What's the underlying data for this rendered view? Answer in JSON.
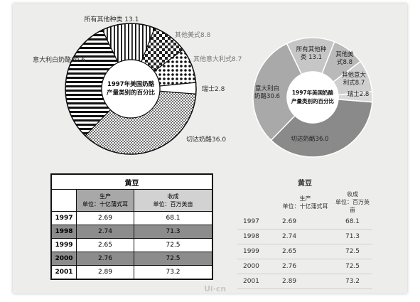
{
  "chart_data": [
    {
      "type": "pie",
      "style": "hatched",
      "title": "1997年美国奶酪 产量类别的百分比",
      "title_lines": [
        "1997年美国奶酪",
        "产量类别的百分比"
      ],
      "slices": [
        {
          "label": "切达奶酪",
          "value": 36.0,
          "text": "切达奶酪36.0",
          "fill": "dots"
        },
        {
          "label": "意大利白奶酪",
          "value": 30.6,
          "text": "意大利白奶酪30.6",
          "fill": "hstripes"
        },
        {
          "label": "所有其他种类",
          "value": 13.1,
          "text": "所有其他种类 13.1",
          "fill": "vstripes"
        },
        {
          "label": "其他美式",
          "value": 8.8,
          "text": "其他美式8.8",
          "fill": "checker"
        },
        {
          "label": "其他意大利式",
          "value": 8.7,
          "text": "其他意大利式8.7",
          "fill": "bigdots"
        },
        {
          "label": "瑞士",
          "value": 2.8,
          "text": "瑞士2.8",
          "fill": "white"
        }
      ]
    },
    {
      "type": "pie",
      "style": "gray",
      "title": "1997年美国奶酪 产量类别的百分比",
      "title_lines": [
        "1997年美国奶酪",
        "产量类别的百分比"
      ],
      "slices": [
        {
          "label": "切达奶酪",
          "value": 36.0,
          "lines": [
            "切达奶酪36.0"
          ],
          "color": "#8a8a8a"
        },
        {
          "label": "意大利白奶酪",
          "value": 30.6,
          "lines": [
            "意大利白",
            "奶酪30.6"
          ],
          "color": "#a9a9a9"
        },
        {
          "label": "所有其他种类",
          "value": 13.1,
          "lines": [
            "所有其他种",
            "类 13.1"
          ],
          "color": "#c6c6c6"
        },
        {
          "label": "其他美式",
          "value": 8.8,
          "lines": [
            "其他美",
            "式8.8"
          ],
          "color": "#b9b9b9"
        },
        {
          "label": "其他意大利式",
          "value": 8.7,
          "lines": [
            "其他意大",
            "利式8.7"
          ],
          "color": "#cfcfcf"
        },
        {
          "label": "瑞士",
          "value": 2.8,
          "lines": [
            "瑞士2.8"
          ],
          "color": "#d9d9d9"
        }
      ]
    },
    {
      "type": "table",
      "title": "黄豆",
      "columns": [
        {
          "name": "生产",
          "unit": "单位：十亿蒲式耳"
        },
        {
          "name": "收成",
          "unit": "单位：百万英亩"
        }
      ],
      "rows": [
        {
          "year": "1997",
          "production": "2.69",
          "harvest": "68.1"
        },
        {
          "year": "1998",
          "production": "2.74",
          "harvest": "71.3"
        },
        {
          "year": "1999",
          "production": "2.65",
          "harvest": "72.5"
        },
        {
          "year": "2000",
          "production": "2.76",
          "harvest": "72.5"
        },
        {
          "year": "2001",
          "production": "2.89",
          "harvest": "73.2"
        }
      ]
    }
  ],
  "watermark": "Ui·cn"
}
